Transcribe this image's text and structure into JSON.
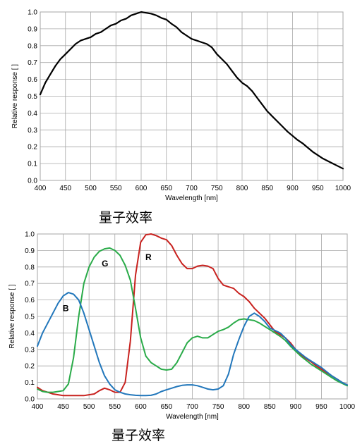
{
  "chart_data": [
    {
      "type": "line",
      "caption": "量子效率",
      "xlabel": "Wavelength [nm]",
      "ylabel": "Relative response [ ]",
      "xlim": [
        400,
        1000
      ],
      "ylim": [
        0,
        1.0
      ],
      "x_ticks": [
        "400",
        "450",
        "500",
        "550",
        "600",
        "650",
        "700",
        "750",
        "800",
        "850",
        "900",
        "950",
        "1000"
      ],
      "y_ticks": [
        "0.0",
        "0.1",
        "0.2",
        "0.3",
        "0.4",
        "0.5",
        "0.6",
        "0.7",
        "0.8",
        "0.9",
        "1.0"
      ],
      "grid": true,
      "series": [
        {
          "color": "#000000",
          "points": [
            [
              400,
              0.51
            ],
            [
              410,
              0.58
            ],
            [
              420,
              0.63
            ],
            [
              430,
              0.68
            ],
            [
              440,
              0.72
            ],
            [
              450,
              0.75
            ],
            [
              460,
              0.78
            ],
            [
              470,
              0.81
            ],
            [
              480,
              0.83
            ],
            [
              490,
              0.84
            ],
            [
              500,
              0.85
            ],
            [
              510,
              0.87
            ],
            [
              520,
              0.88
            ],
            [
              530,
              0.9
            ],
            [
              540,
              0.92
            ],
            [
              550,
              0.93
            ],
            [
              560,
              0.95
            ],
            [
              570,
              0.96
            ],
            [
              580,
              0.98
            ],
            [
              590,
              0.99
            ],
            [
              600,
              1.0
            ],
            [
              610,
              0.995
            ],
            [
              620,
              0.99
            ],
            [
              630,
              0.98
            ],
            [
              640,
              0.965
            ],
            [
              650,
              0.955
            ],
            [
              660,
              0.93
            ],
            [
              670,
              0.91
            ],
            [
              680,
              0.88
            ],
            [
              690,
              0.86
            ],
            [
              700,
              0.84
            ],
            [
              710,
              0.83
            ],
            [
              720,
              0.82
            ],
            [
              730,
              0.81
            ],
            [
              740,
              0.79
            ],
            [
              750,
              0.75
            ],
            [
              760,
              0.72
            ],
            [
              770,
              0.69
            ],
            [
              780,
              0.65
            ],
            [
              790,
              0.61
            ],
            [
              800,
              0.58
            ],
            [
              810,
              0.56
            ],
            [
              820,
              0.53
            ],
            [
              830,
              0.49
            ],
            [
              840,
              0.45
            ],
            [
              850,
              0.41
            ],
            [
              860,
              0.38
            ],
            [
              870,
              0.35
            ],
            [
              880,
              0.32
            ],
            [
              890,
              0.29
            ],
            [
              900,
              0.265
            ],
            [
              910,
              0.24
            ],
            [
              920,
              0.22
            ],
            [
              930,
              0.195
            ],
            [
              940,
              0.17
            ],
            [
              950,
              0.15
            ],
            [
              960,
              0.13
            ],
            [
              970,
              0.115
            ],
            [
              980,
              0.1
            ],
            [
              990,
              0.085
            ],
            [
              1000,
              0.07
            ]
          ]
        }
      ]
    },
    {
      "type": "line",
      "caption": "量子效率",
      "xlabel": "Wavelength [nm]",
      "ylabel": "Relative response [ ]",
      "xlim": [
        400,
        1000
      ],
      "ylim": [
        0,
        1.0
      ],
      "x_ticks": [
        "400",
        "450",
        "500",
        "550",
        "600",
        "650",
        "700",
        "750",
        "800",
        "850",
        "900",
        "950",
        "1000"
      ],
      "y_ticks": [
        "0.0",
        "0.1",
        "0.2",
        "0.3",
        "0.4",
        "0.5",
        "0.6",
        "0.7",
        "0.8",
        "0.9",
        "1.0"
      ],
      "grid": true,
      "series": [
        {
          "name": "R",
          "color": "#c8221f",
          "label_at": [
            615,
            0.86
          ],
          "points": [
            [
              400,
              0.07
            ],
            [
              410,
              0.05
            ],
            [
              420,
              0.04
            ],
            [
              430,
              0.03
            ],
            [
              440,
              0.025
            ],
            [
              450,
              0.02
            ],
            [
              460,
              0.02
            ],
            [
              470,
              0.02
            ],
            [
              480,
              0.02
            ],
            [
              490,
              0.02
            ],
            [
              500,
              0.025
            ],
            [
              510,
              0.03
            ],
            [
              520,
              0.05
            ],
            [
              530,
              0.065
            ],
            [
              540,
              0.055
            ],
            [
              550,
              0.04
            ],
            [
              560,
              0.04
            ],
            [
              570,
              0.1
            ],
            [
              580,
              0.35
            ],
            [
              590,
              0.75
            ],
            [
              600,
              0.95
            ],
            [
              610,
              0.995
            ],
            [
              620,
              1.0
            ],
            [
              630,
              0.99
            ],
            [
              640,
              0.975
            ],
            [
              650,
              0.965
            ],
            [
              660,
              0.93
            ],
            [
              670,
              0.87
            ],
            [
              680,
              0.82
            ],
            [
              690,
              0.79
            ],
            [
              700,
              0.79
            ],
            [
              710,
              0.805
            ],
            [
              720,
              0.81
            ],
            [
              730,
              0.805
            ],
            [
              740,
              0.79
            ],
            [
              750,
              0.73
            ],
            [
              760,
              0.69
            ],
            [
              770,
              0.68
            ],
            [
              780,
              0.67
            ],
            [
              790,
              0.64
            ],
            [
              800,
              0.62
            ],
            [
              810,
              0.59
            ],
            [
              820,
              0.55
            ],
            [
              830,
              0.52
            ],
            [
              840,
              0.49
            ],
            [
              850,
              0.45
            ],
            [
              860,
              0.41
            ],
            [
              870,
              0.39
            ],
            [
              880,
              0.37
            ],
            [
              890,
              0.34
            ],
            [
              900,
              0.3
            ],
            [
              910,
              0.27
            ],
            [
              920,
              0.245
            ],
            [
              930,
              0.225
            ],
            [
              940,
              0.2
            ],
            [
              950,
              0.18
            ],
            [
              960,
              0.16
            ],
            [
              970,
              0.14
            ],
            [
              980,
              0.12
            ],
            [
              990,
              0.1
            ],
            [
              1000,
              0.085
            ]
          ]
        },
        {
          "name": "G",
          "color": "#2aab49",
          "label_at": [
            531,
            0.82
          ],
          "points": [
            [
              400,
              0.06
            ],
            [
              410,
              0.045
            ],
            [
              420,
              0.04
            ],
            [
              430,
              0.04
            ],
            [
              440,
              0.045
            ],
            [
              450,
              0.05
            ],
            [
              460,
              0.09
            ],
            [
              470,
              0.25
            ],
            [
              480,
              0.5
            ],
            [
              490,
              0.7
            ],
            [
              500,
              0.8
            ],
            [
              510,
              0.86
            ],
            [
              520,
              0.895
            ],
            [
              530,
              0.91
            ],
            [
              540,
              0.915
            ],
            [
              550,
              0.9
            ],
            [
              560,
              0.87
            ],
            [
              570,
              0.81
            ],
            [
              580,
              0.72
            ],
            [
              590,
              0.55
            ],
            [
              600,
              0.37
            ],
            [
              610,
              0.26
            ],
            [
              620,
              0.22
            ],
            [
              630,
              0.2
            ],
            [
              640,
              0.18
            ],
            [
              650,
              0.175
            ],
            [
              660,
              0.18
            ],
            [
              670,
              0.22
            ],
            [
              680,
              0.28
            ],
            [
              690,
              0.34
            ],
            [
              700,
              0.37
            ],
            [
              710,
              0.38
            ],
            [
              720,
              0.37
            ],
            [
              730,
              0.37
            ],
            [
              740,
              0.39
            ],
            [
              750,
              0.41
            ],
            [
              760,
              0.42
            ],
            [
              770,
              0.435
            ],
            [
              780,
              0.46
            ],
            [
              790,
              0.48
            ],
            [
              800,
              0.485
            ],
            [
              810,
              0.48
            ],
            [
              820,
              0.475
            ],
            [
              830,
              0.46
            ],
            [
              840,
              0.44
            ],
            [
              850,
              0.42
            ],
            [
              860,
              0.4
            ],
            [
              870,
              0.38
            ],
            [
              880,
              0.355
            ],
            [
              890,
              0.32
            ],
            [
              900,
              0.29
            ],
            [
              910,
              0.26
            ],
            [
              920,
              0.235
            ],
            [
              930,
              0.21
            ],
            [
              940,
              0.19
            ],
            [
              950,
              0.17
            ],
            [
              960,
              0.15
            ],
            [
              970,
              0.13
            ],
            [
              980,
              0.11
            ],
            [
              990,
              0.095
            ],
            [
              1000,
              0.08
            ]
          ]
        },
        {
          "name": "B",
          "color": "#2277bb",
          "label_at": [
            455,
            0.55
          ],
          "points": [
            [
              400,
              0.32
            ],
            [
              410,
              0.4
            ],
            [
              420,
              0.46
            ],
            [
              430,
              0.52
            ],
            [
              440,
              0.58
            ],
            [
              450,
              0.625
            ],
            [
              460,
              0.645
            ],
            [
              470,
              0.635
            ],
            [
              480,
              0.6
            ],
            [
              490,
              0.52
            ],
            [
              500,
              0.42
            ],
            [
              510,
              0.32
            ],
            [
              520,
              0.22
            ],
            [
              530,
              0.14
            ],
            [
              540,
              0.09
            ],
            [
              550,
              0.055
            ],
            [
              560,
              0.04
            ],
            [
              570,
              0.03
            ],
            [
              580,
              0.025
            ],
            [
              590,
              0.022
            ],
            [
              600,
              0.02
            ],
            [
              610,
              0.02
            ],
            [
              620,
              0.022
            ],
            [
              630,
              0.03
            ],
            [
              640,
              0.045
            ],
            [
              650,
              0.055
            ],
            [
              660,
              0.065
            ],
            [
              670,
              0.075
            ],
            [
              680,
              0.082
            ],
            [
              690,
              0.085
            ],
            [
              700,
              0.085
            ],
            [
              710,
              0.08
            ],
            [
              720,
              0.07
            ],
            [
              730,
              0.06
            ],
            [
              740,
              0.055
            ],
            [
              750,
              0.06
            ],
            [
              760,
              0.08
            ],
            [
              770,
              0.15
            ],
            [
              780,
              0.27
            ],
            [
              790,
              0.36
            ],
            [
              800,
              0.44
            ],
            [
              810,
              0.5
            ],
            [
              820,
              0.52
            ],
            [
              830,
              0.5
            ],
            [
              840,
              0.47
            ],
            [
              850,
              0.43
            ],
            [
              860,
              0.415
            ],
            [
              870,
              0.4
            ],
            [
              880,
              0.37
            ],
            [
              890,
              0.33
            ],
            [
              900,
              0.3
            ],
            [
              910,
              0.275
            ],
            [
              920,
              0.25
            ],
            [
              930,
              0.23
            ],
            [
              940,
              0.21
            ],
            [
              950,
              0.19
            ],
            [
              960,
              0.165
            ],
            [
              970,
              0.14
            ],
            [
              980,
              0.12
            ],
            [
              990,
              0.1
            ],
            [
              1000,
              0.085
            ]
          ]
        }
      ]
    }
  ]
}
